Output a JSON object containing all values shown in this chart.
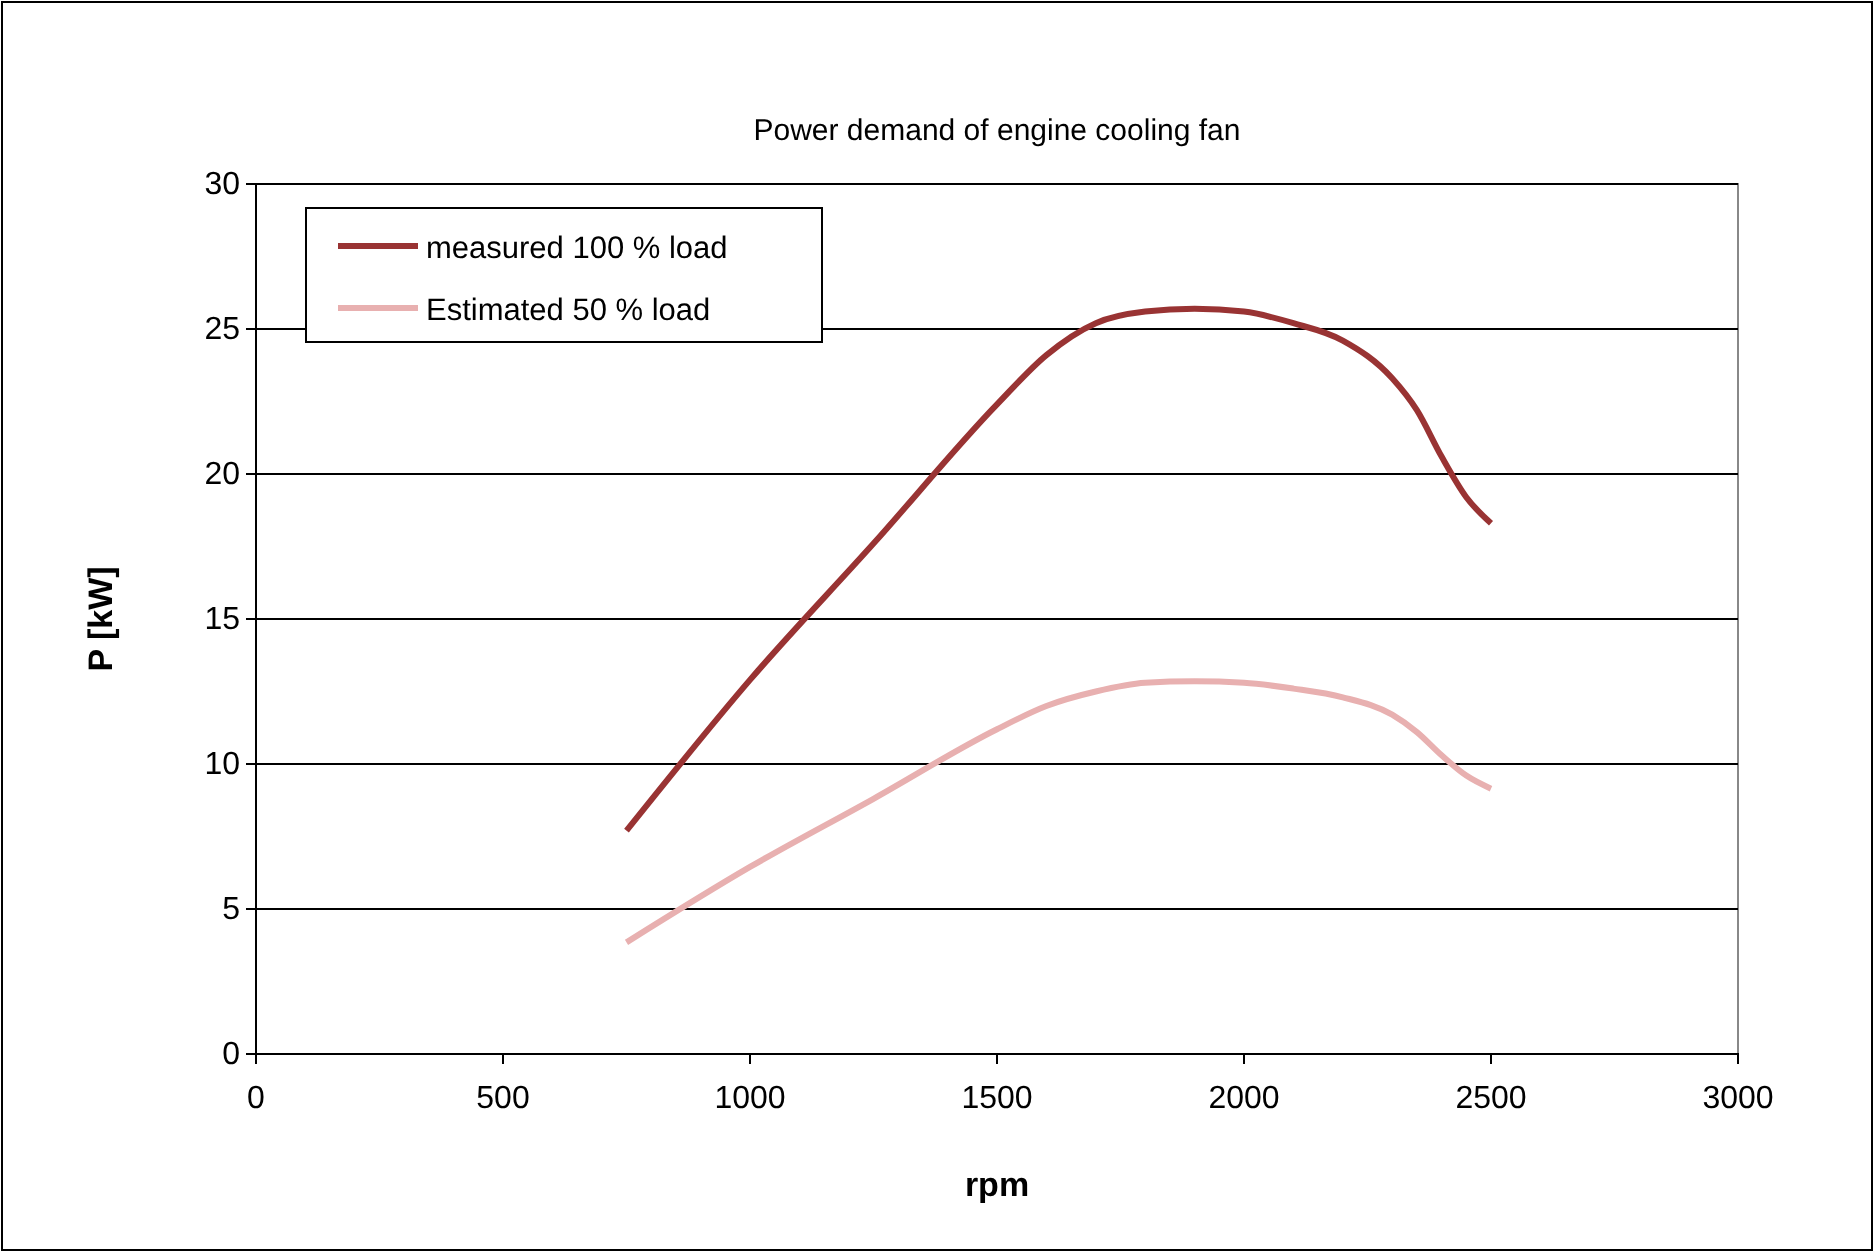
{
  "chart_data": {
    "type": "line",
    "title": "Power demand of engine cooling fan",
    "xlabel": "rpm",
    "ylabel": "P [kW]",
    "x": [
      750,
      1000,
      1250,
      1500,
      1600,
      1700,
      1800,
      1900,
      2000,
      2100,
      2200,
      2300,
      2350,
      2400,
      2450,
      2500
    ],
    "series": [
      {
        "name": "measured 100 % load",
        "color": "#993333",
        "values": [
          7.7,
          12.9,
          17.6,
          22.4,
          24.1,
          25.2,
          25.6,
          25.7,
          25.6,
          25.2,
          24.6,
          23.3,
          22.2,
          20.6,
          19.2,
          18.3
        ]
      },
      {
        "name": "Estimated 50 % load",
        "color": "#e8b0b0",
        "values": [
          3.85,
          6.45,
          8.8,
          11.2,
          12.0,
          12.5,
          12.8,
          12.85,
          12.8,
          12.6,
          12.3,
          11.7,
          11.1,
          10.3,
          9.6,
          9.15
        ]
      }
    ],
    "xlim": [
      0,
      3000
    ],
    "xticks": [
      0,
      500,
      1000,
      1500,
      2000,
      2500,
      3000
    ],
    "ylim": [
      0,
      30
    ],
    "yticks": [
      0,
      5,
      10,
      15,
      20,
      25,
      30
    ],
    "grid": "y",
    "legend": "top left",
    "line_style": "solid",
    "marker": "none"
  }
}
